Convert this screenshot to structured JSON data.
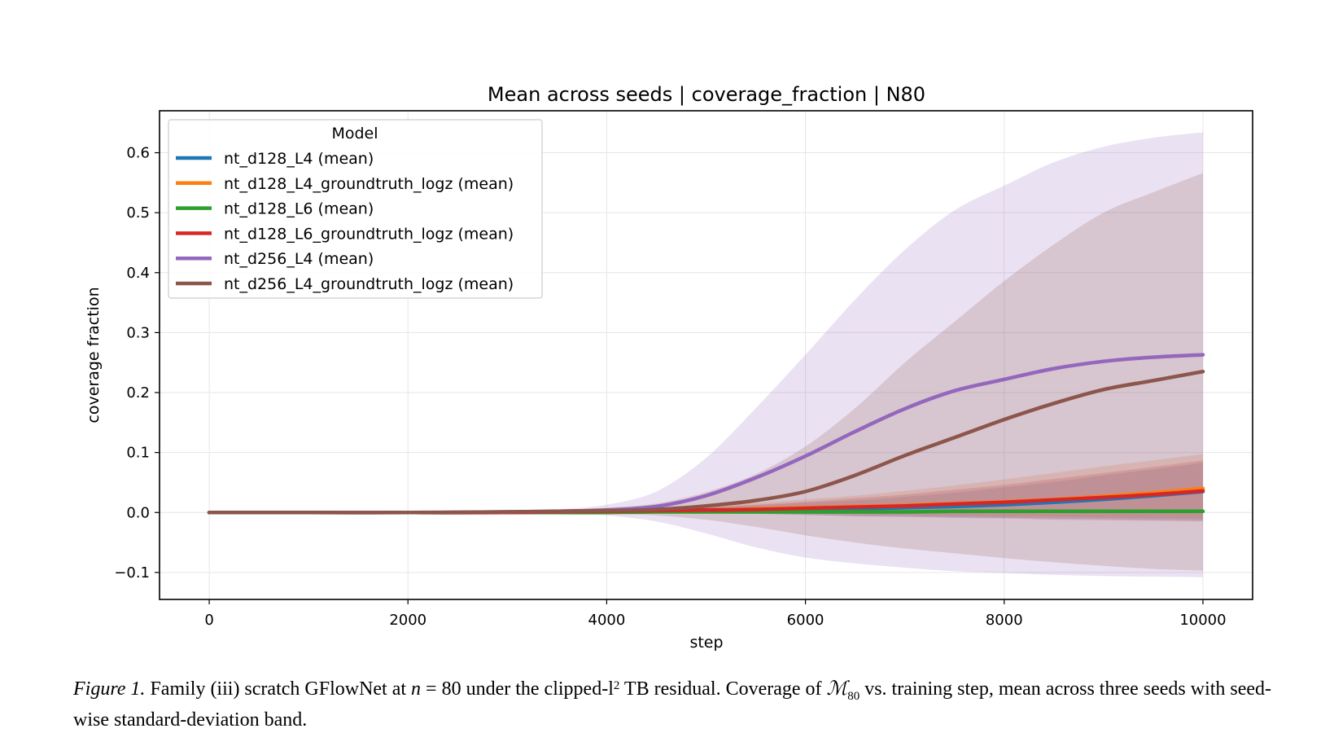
{
  "chart_data": {
    "type": "line",
    "title": "Mean across seeds | coverage_fraction | N80",
    "xlabel": "step",
    "ylabel": "coverage fraction",
    "xlim": [
      -500,
      10500
    ],
    "ylim": [
      -0.145,
      0.67
    ],
    "x_ticks": [
      0,
      2000,
      4000,
      6000,
      8000,
      10000
    ],
    "y_ticks": [
      -0.1,
      0.0,
      0.1,
      0.2,
      0.3,
      0.4,
      0.5,
      0.6
    ],
    "x_tick_labels": [
      "0",
      "2000",
      "4000",
      "6000",
      "8000",
      "10000"
    ],
    "y_tick_labels": [
      "−0.1",
      "0.0",
      "0.1",
      "0.2",
      "0.3",
      "0.4",
      "0.5",
      "0.6"
    ],
    "grid": true,
    "legend": {
      "title": "Model",
      "placement": "top-left"
    },
    "x": [
      0,
      1000,
      2000,
      3000,
      3500,
      4000,
      4500,
      5000,
      5500,
      6000,
      6500,
      7000,
      7500,
      8000,
      8500,
      9000,
      9500,
      10000
    ],
    "series": [
      {
        "name": "nt_d128_L4 (mean)",
        "color": "#1f77b4",
        "values": [
          0,
          0,
          0,
          0,
          0.001,
          0.001,
          0.002,
          0.003,
          0.004,
          0.005,
          0.006,
          0.008,
          0.01,
          0.013,
          0.017,
          0.022,
          0.028,
          0.035
        ],
        "band_lower": [
          0,
          0,
          0,
          0,
          0,
          0,
          0,
          0,
          -0.002,
          -0.004,
          -0.006,
          -0.007,
          -0.008,
          -0.009,
          -0.01,
          -0.011,
          -0.012,
          -0.013
        ],
        "band_upper": [
          0,
          0,
          0,
          0,
          0.002,
          0.003,
          0.005,
          0.008,
          0.012,
          0.016,
          0.02,
          0.026,
          0.033,
          0.042,
          0.051,
          0.062,
          0.072,
          0.083
        ]
      },
      {
        "name": "nt_d128_L4_groundtruth_logz (mean)",
        "color": "#ff7f0e",
        "values": [
          0,
          0,
          0,
          0,
          0.001,
          0.002,
          0.003,
          0.004,
          0.006,
          0.008,
          0.01,
          0.012,
          0.015,
          0.018,
          0.022,
          0.027,
          0.033,
          0.04
        ],
        "band_lower": [
          0,
          0,
          0,
          0,
          0,
          0,
          0,
          0,
          -0.001,
          -0.002,
          -0.003,
          -0.004,
          -0.005,
          -0.006,
          -0.007,
          -0.008,
          -0.009,
          -0.01
        ],
        "band_upper": [
          0,
          0,
          0,
          0,
          0.002,
          0.004,
          0.007,
          0.011,
          0.016,
          0.022,
          0.028,
          0.036,
          0.045,
          0.055,
          0.066,
          0.077,
          0.087,
          0.097
        ]
      },
      {
        "name": "nt_d128_L6 (mean)",
        "color": "#2ca02c",
        "values": [
          0,
          0,
          0,
          0,
          0,
          0,
          0.001,
          0.001,
          0.001,
          0.001,
          0.001,
          0.001,
          0.002,
          0.002,
          0.002,
          0.002,
          0.002,
          0.002
        ],
        "band_lower": [
          0,
          0,
          0,
          0,
          0,
          0,
          0,
          0,
          0,
          0,
          0,
          0,
          0,
          0,
          0,
          0,
          0,
          0
        ],
        "band_upper": [
          0,
          0,
          0,
          0,
          0,
          0.001,
          0.001,
          0.002,
          0.002,
          0.002,
          0.002,
          0.003,
          0.003,
          0.003,
          0.003,
          0.004,
          0.004,
          0.004
        ]
      },
      {
        "name": "nt_d128_L6_groundtruth_logz (mean)",
        "color": "#d62728",
        "values": [
          0,
          0,
          0,
          0,
          0.001,
          0.002,
          0.003,
          0.004,
          0.005,
          0.007,
          0.009,
          0.011,
          0.014,
          0.017,
          0.021,
          0.025,
          0.03,
          0.036
        ],
        "band_lower": [
          0,
          0,
          0,
          0,
          0,
          0,
          0,
          -0.001,
          -0.002,
          -0.004,
          -0.006,
          -0.007,
          -0.009,
          -0.01,
          -0.012,
          -0.013,
          -0.014,
          -0.015
        ],
        "band_upper": [
          0,
          0,
          0,
          0,
          0.002,
          0.004,
          0.006,
          0.009,
          0.013,
          0.018,
          0.024,
          0.03,
          0.038,
          0.046,
          0.056,
          0.066,
          0.076,
          0.087
        ]
      },
      {
        "name": "nt_d256_L4 (mean)",
        "color": "#9467bd",
        "values": [
          0,
          0,
          0,
          0.001,
          0.002,
          0.004,
          0.01,
          0.028,
          0.058,
          0.094,
          0.135,
          0.173,
          0.203,
          0.222,
          0.24,
          0.252,
          0.259,
          0.263
        ],
        "band_lower": [
          0,
          0,
          0,
          0,
          -0.001,
          -0.005,
          -0.015,
          -0.035,
          -0.058,
          -0.075,
          -0.085,
          -0.092,
          -0.098,
          -0.101,
          -0.104,
          -0.106,
          -0.107,
          -0.108
        ],
        "band_upper": [
          0,
          0,
          0,
          0.002,
          0.005,
          0.013,
          0.035,
          0.091,
          0.174,
          0.263,
          0.355,
          0.438,
          0.504,
          0.545,
          0.584,
          0.61,
          0.625,
          0.634
        ]
      },
      {
        "name": "nt_d256_L4_groundtruth_logz (mean)",
        "color": "#8c564b",
        "values": [
          0,
          0,
          0,
          0.001,
          0.002,
          0.003,
          0.005,
          0.011,
          0.02,
          0.035,
          0.062,
          0.095,
          0.125,
          0.155,
          0.182,
          0.205,
          0.22,
          0.235
        ],
        "band_lower": [
          0,
          0,
          0,
          0,
          0,
          -0.002,
          -0.005,
          -0.012,
          -0.024,
          -0.038,
          -0.05,
          -0.06,
          -0.068,
          -0.076,
          -0.083,
          -0.089,
          -0.094,
          -0.097
        ],
        "band_upper": [
          0,
          0,
          0,
          0.002,
          0.004,
          0.008,
          0.015,
          0.034,
          0.064,
          0.11,
          0.174,
          0.25,
          0.318,
          0.386,
          0.447,
          0.5,
          0.534,
          0.566
        ]
      }
    ]
  },
  "caption": {
    "figure_label": "Figure 1.",
    "text_1": " Family (iii) scratch GFlowNet at ",
    "math_n": "n",
    "text_eq": " = 80",
    "text_2": " under the clipped-l",
    "sup_2": "2",
    "text_3": " TB residual. Coverage of ",
    "math_M": "ℳ",
    "sub_80": "80",
    "text_4": " vs. training step, mean across three seeds with seed-wise standard-deviation band."
  }
}
